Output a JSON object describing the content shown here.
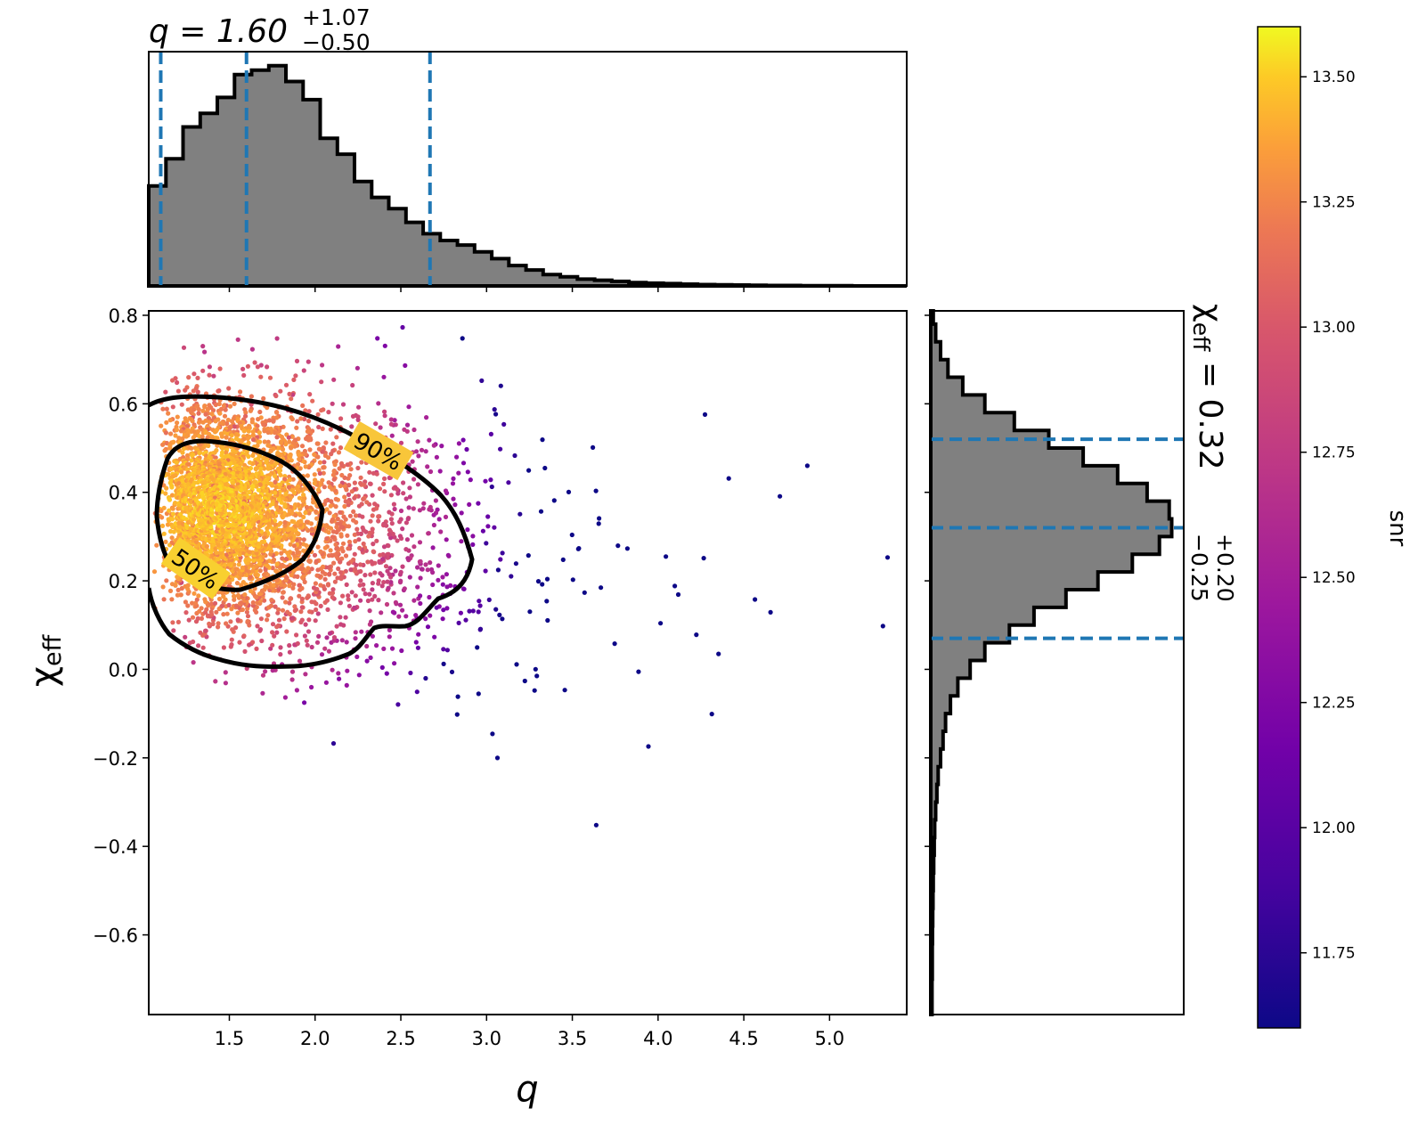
{
  "chart_data": {
    "type": "scatter",
    "xlabel": "q",
    "ylabel": "χ",
    "ylabel_sub": "eff",
    "xlim": [
      1.03,
      5.45
    ],
    "ylim": [
      -0.78,
      0.81
    ],
    "xticks": [
      1.5,
      2.0,
      2.5,
      3.0,
      3.5,
      4.0,
      4.5,
      5.0
    ],
    "xtick_labels": [
      "1.5",
      "2.0",
      "2.5",
      "3.0",
      "3.5",
      "4.0",
      "4.5",
      "5.0"
    ],
    "yticks": [
      0.8,
      0.6,
      0.4,
      0.2,
      0.0,
      -0.2,
      -0.4,
      -0.6
    ],
    "ytick_labels": [
      "0.8",
      "0.6",
      "0.4",
      "0.2",
      "0.0",
      "−0.2",
      "−0.4",
      "−0.6"
    ],
    "q_summary": {
      "prefix": "q = 1.60",
      "plus": "+1.07",
      "minus": "−0.50",
      "median": 1.6,
      "lower": 1.1,
      "upper": 2.67
    },
    "chi_summary": {
      "prefix_symbol": "χ",
      "prefix_sub": "eff",
      "prefix_value": " = 0.32",
      "plus": "+0.20",
      "minus": "−0.25",
      "median": 0.32,
      "lower": 0.07,
      "upper": 0.52
    },
    "contours": [
      {
        "label": "90%",
        "level": 0.9
      },
      {
        "label": "50%",
        "level": 0.5
      }
    ],
    "colorbar": {
      "label": "snr",
      "range": [
        11.6,
        13.6
      ],
      "colormap": "plasma",
      "ticks": [
        13.5,
        13.25,
        13.0,
        12.75,
        12.5,
        12.25,
        12.0,
        11.75
      ],
      "tick_labels": [
        "13.50",
        "13.25",
        "13.00",
        "12.75",
        "12.50",
        "12.25",
        "12.00",
        "11.75"
      ]
    },
    "q_histogram": {
      "bin_start": 1.03,
      "bin_width": 0.1,
      "heights": [
        0.44,
        0.56,
        0.7,
        0.76,
        0.83,
        0.93,
        0.95,
        0.97,
        0.9,
        0.82,
        0.65,
        0.58,
        0.46,
        0.39,
        0.34,
        0.28,
        0.23,
        0.2,
        0.18,
        0.15,
        0.12,
        0.09,
        0.07,
        0.05,
        0.04,
        0.03,
        0.025,
        0.02,
        0.015,
        0.012,
        0.01,
        0.008,
        0.006,
        0.005,
        0.004,
        0.003,
        0.002,
        0.002,
        0.001,
        0.001,
        0.001,
        0.0,
        0.0,
        0.0
      ]
    },
    "chi_histogram": {
      "bin_start": -0.78,
      "bin_width": 0.04,
      "heights": [
        0.005,
        0.005,
        0.006,
        0.006,
        0.007,
        0.008,
        0.009,
        0.01,
        0.012,
        0.014,
        0.016,
        0.02,
        0.025,
        0.03,
        0.04,
        0.05,
        0.06,
        0.08,
        0.11,
        0.16,
        0.22,
        0.32,
        0.42,
        0.55,
        0.68,
        0.82,
        0.93,
        0.98,
        0.97,
        0.88,
        0.76,
        0.62,
        0.48,
        0.34,
        0.22,
        0.13,
        0.07,
        0.04,
        0.02,
        0.01
      ]
    }
  }
}
